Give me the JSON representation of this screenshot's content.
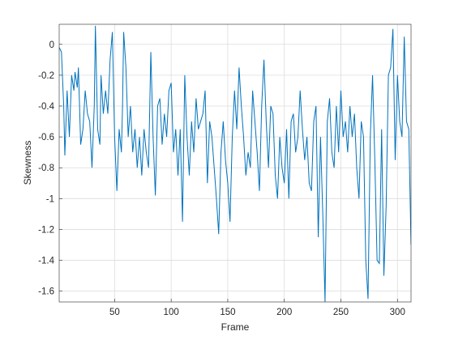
{
  "chart_data": {
    "type": "line",
    "x_label": "Frame",
    "y_label": "Skewness",
    "x": [
      1,
      3,
      5,
      6,
      8,
      10,
      12,
      14,
      15,
      17,
      18,
      20,
      22,
      24,
      26,
      28,
      30,
      32,
      33,
      35,
      37,
      38,
      40,
      42,
      44,
      46,
      48,
      50,
      52,
      54,
      56,
      57,
      58,
      60,
      62,
      64,
      66,
      68,
      70,
      72,
      74,
      76,
      78,
      80,
      82,
      84,
      86,
      88,
      90,
      92,
      94,
      96,
      98,
      100,
      102,
      104,
      106,
      108,
      110,
      112,
      114,
      116,
      118,
      120,
      122,
      124,
      126,
      128,
      130,
      132,
      134,
      136,
      138,
      140,
      142,
      144,
      146,
      148,
      150,
      152,
      154,
      156,
      158,
      160,
      162,
      164,
      166,
      168,
      170,
      172,
      174,
      176,
      178,
      180,
      182,
      184,
      186,
      188,
      190,
      192,
      194,
      196,
      198,
      200,
      202,
      204,
      206,
      208,
      210,
      212,
      214,
      216,
      218,
      220,
      222,
      224,
      226,
      228,
      230,
      232,
      234,
      236,
      238,
      240,
      242,
      244,
      246,
      248,
      250,
      252,
      254,
      256,
      258,
      260,
      262,
      264,
      266,
      268,
      270,
      272,
      274,
      276,
      278,
      280,
      282,
      284,
      286,
      288,
      290,
      292,
      294,
      296,
      298,
      300,
      302,
      304,
      306,
      308,
      310,
      312
    ],
    "series": [
      {
        "color": "#0072bd",
        "values": [
          -0.02,
          -0.05,
          -0.4,
          -0.72,
          -0.3,
          -0.6,
          -0.2,
          -0.3,
          -0.18,
          -0.28,
          -0.15,
          -0.65,
          -0.55,
          -0.3,
          -0.45,
          -0.5,
          -0.8,
          -0.4,
          0.12,
          -0.55,
          -0.65,
          -0.2,
          -0.45,
          -0.3,
          -0.45,
          -0.1,
          0.08,
          -0.6,
          -0.95,
          -0.55,
          -0.7,
          -0.4,
          0.08,
          -0.15,
          -0.6,
          -0.4,
          -0.7,
          -0.55,
          -0.8,
          -0.6,
          -0.85,
          -0.55,
          -0.7,
          -0.8,
          -0.05,
          -0.6,
          -0.98,
          -0.4,
          -0.35,
          -0.65,
          -0.45,
          -0.6,
          -0.3,
          -0.25,
          -0.7,
          -0.55,
          -0.85,
          -0.55,
          -1.15,
          -0.2,
          -0.6,
          -0.85,
          -0.5,
          -0.7,
          -0.35,
          -0.55,
          -0.5,
          -0.45,
          -0.3,
          -0.9,
          -0.5,
          -0.6,
          -0.8,
          -1.0,
          -1.23,
          -0.7,
          -0.5,
          -0.75,
          -0.9,
          -1.15,
          -0.6,
          -0.3,
          -0.55,
          -0.15,
          -0.4,
          -0.6,
          -0.85,
          -0.7,
          -0.8,
          -0.3,
          -0.5,
          -0.7,
          -0.95,
          -0.4,
          -0.1,
          -0.5,
          -0.8,
          -0.4,
          -0.45,
          -0.85,
          -1.0,
          -0.6,
          -0.8,
          -0.9,
          -0.55,
          -1.0,
          -0.5,
          -0.45,
          -0.7,
          -0.6,
          -0.3,
          -0.55,
          -0.75,
          -0.6,
          -0.9,
          -0.95,
          -0.5,
          -0.4,
          -1.25,
          -0.6,
          -1.1,
          -1.67,
          -0.5,
          -0.35,
          -0.7,
          -0.8,
          -0.4,
          -0.7,
          -0.3,
          -0.6,
          -0.5,
          -0.7,
          -0.4,
          -0.6,
          -0.45,
          -0.8,
          -1.0,
          -0.5,
          -0.6,
          -1.4,
          -1.65,
          -0.6,
          -0.2,
          -0.75,
          -1.4,
          -1.42,
          -0.55,
          -1.5,
          -1.05,
          -0.2,
          -0.15,
          0.1,
          -0.75,
          -0.2,
          -0.5,
          -0.6,
          0.05,
          -0.5,
          -0.55,
          -1.3
        ]
      }
    ],
    "xlim": [
      1,
      312
    ],
    "ylim": [
      -1.67,
      0.13
    ],
    "xticks": [
      50,
      100,
      150,
      200,
      250,
      300
    ],
    "yticks": [
      -1.6,
      -1.4,
      -1.2,
      -1,
      -0.8,
      -0.6,
      -0.4,
      -0.2,
      0
    ],
    "grid": true
  }
}
